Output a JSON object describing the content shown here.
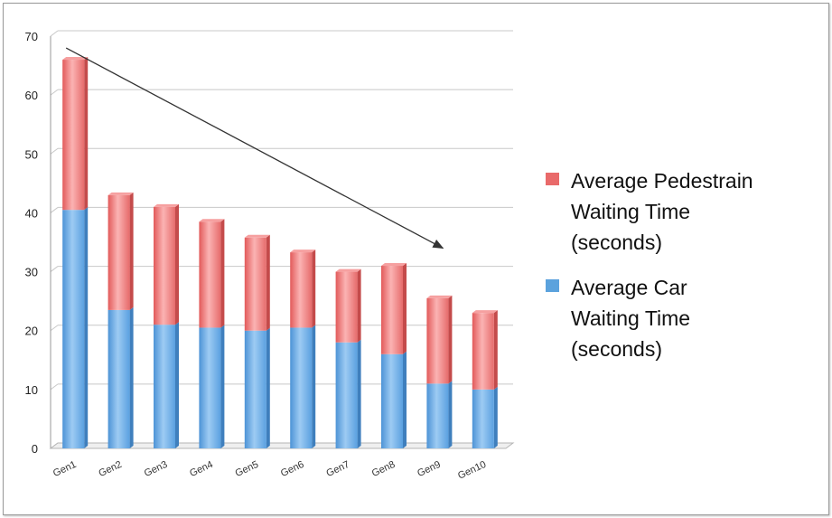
{
  "chart_data": {
    "type": "bar",
    "stacked": true,
    "categories": [
      "Gen1",
      "Gen2",
      "Gen3",
      "Gen4",
      "Gen5",
      "Gen6",
      "Gen7",
      "Gen8",
      "Gen9",
      "Gen10"
    ],
    "series": [
      {
        "name": "Average Car Waiting Time (seconds)",
        "color": "#6aaee6",
        "values": [
          40.5,
          23.5,
          21,
          20.5,
          20,
          20.5,
          18,
          16,
          11,
          10
        ]
      },
      {
        "name": "Average Pedestrain Waiting Time (seconds)",
        "color": "#f08080",
        "values": [
          25.5,
          19.5,
          20,
          18,
          15.8,
          12.8,
          12,
          15,
          14.5,
          13
        ]
      }
    ],
    "ylim": [
      0,
      70
    ],
    "yticks": [
      0,
      10,
      20,
      30,
      40,
      50,
      60,
      70
    ],
    "grid": true,
    "legend_position": "right",
    "trend_arrow": {
      "from": {
        "category": "Gen1",
        "y": 68
      },
      "to": {
        "category": "Gen9",
        "y": 34
      }
    }
  },
  "legend": {
    "pedestrian": {
      "lines": [
        "Average Pedestrain",
        "Waiting Time",
        "(seconds)"
      ],
      "color": "#e96a6a"
    },
    "car": {
      "lines": [
        "Average Car",
        "Waiting Time",
        "(seconds)"
      ],
      "color": "#5ba2dd"
    }
  }
}
